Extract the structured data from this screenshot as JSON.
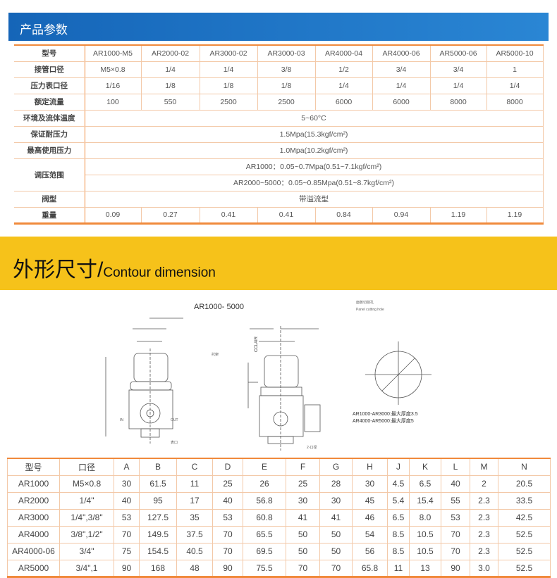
{
  "section1": {
    "title": "产品参数"
  },
  "params": {
    "models_label": "型号",
    "models": [
      "AR1000-M5",
      "AR2000-02",
      "AR3000-02",
      "AR3000-03",
      "AR4000-04",
      "AR4000-06",
      "AR5000-06",
      "AR5000-10"
    ],
    "port_label": "接管口径",
    "port": [
      "M5×0.8",
      "1/4",
      "1/4",
      "3/8",
      "1/2",
      "3/4",
      "3/4",
      "1"
    ],
    "gauge_label": "压力表口径",
    "gauge": [
      "1/16",
      "1/8",
      "1/8",
      "1/8",
      "1/4",
      "1/4",
      "1/4",
      "1/4"
    ],
    "flow_label": "额定流量",
    "flow": [
      "100",
      "550",
      "2500",
      "2500",
      "6000",
      "6000",
      "8000",
      "8000"
    ],
    "temp_label": "环境及流体温度",
    "temp": "5~60°C",
    "proof_label": "保证耐压力",
    "proof": "1.5Mpa(15.3kgf/cm²)",
    "max_label": "最高使用压力",
    "max": "1.0Mpa(10.2kgf/cm²)",
    "range_label": "调压范围",
    "range1": "AR1000：0.05~0.7Mpa(0.51~7.1kgf/cm²)",
    "range2": "AR2000~5000：0.05~0.85Mpa(0.51~8.7kgf/cm²)",
    "valve_label": "阀型",
    "valve": "带溢流型",
    "weight_label": "重量",
    "weight": [
      "0.09",
      "0.27",
      "0.41",
      "0.41",
      "0.84",
      "0.94",
      "1.19",
      "1.19"
    ]
  },
  "section2": {
    "title_cn": "外形尺寸/",
    "title_en": "Contour dimension"
  },
  "diagram": {
    "title": "AR1000- 5000",
    "panel_cn": "面板切削孔",
    "panel_en": "Panel cutting hole",
    "bracket": "托架",
    "gauge_port": "表口",
    "port2": "2-口径",
    "in": "IN",
    "out": "OUT",
    "brand": "CCLAIR",
    "note1": "AR1000-AR3000:最大厚度3.5",
    "note2": "AR4000-AR5000:最大厚度5"
  },
  "dims": {
    "headers": [
      "型号",
      "口径",
      "A",
      "B",
      "C",
      "D",
      "E",
      "F",
      "G",
      "H",
      "J",
      "K",
      "L",
      "M",
      "N"
    ],
    "rows": [
      [
        "AR1000",
        "M5×0.8",
        "30",
        "61.5",
        "11",
        "25",
        "26",
        "25",
        "28",
        "30",
        "4.5",
        "6.5",
        "40",
        "2",
        "20.5"
      ],
      [
        "AR2000",
        "1/4\"",
        "40",
        "95",
        "17",
        "40",
        "56.8",
        "30",
        "30",
        "45",
        "5.4",
        "15.4",
        "55",
        "2.3",
        "33.5"
      ],
      [
        "AR3000",
        "1/4\",3/8\"",
        "53",
        "127.5",
        "35",
        "53",
        "60.8",
        "41",
        "41",
        "46",
        "6.5",
        "8.0",
        "53",
        "2.3",
        "42.5"
      ],
      [
        "AR4000",
        "3/8\",1/2\"",
        "70",
        "149.5",
        "37.5",
        "70",
        "65.5",
        "50",
        "50",
        "54",
        "8.5",
        "10.5",
        "70",
        "2.3",
        "52.5"
      ],
      [
        "AR4000-06",
        "3/4\"",
        "75",
        "154.5",
        "40.5",
        "70",
        "69.5",
        "50",
        "50",
        "56",
        "8.5",
        "10.5",
        "70",
        "2.3",
        "52.5"
      ],
      [
        "AR5000",
        "3/4\",1",
        "90",
        "168",
        "48",
        "90",
        "75.5",
        "70",
        "70",
        "65.8",
        "11",
        "13",
        "90",
        "3.0",
        "52.5"
      ]
    ]
  },
  "colors": {
    "blue": "#1565b8",
    "yellow": "#f6c21a",
    "orange": "#f08a3c"
  }
}
